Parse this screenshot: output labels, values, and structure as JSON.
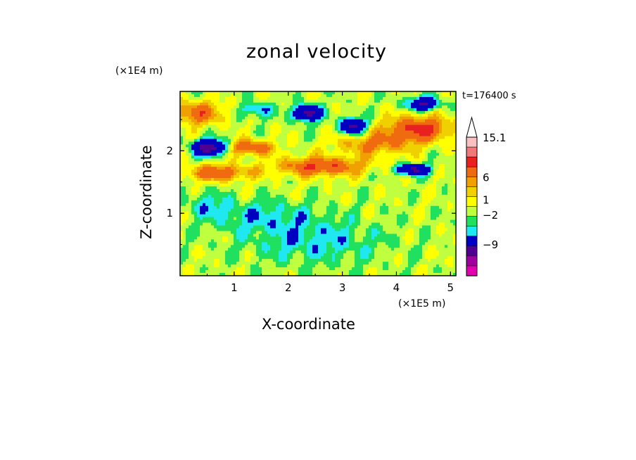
{
  "chart_data": {
    "type": "heatmap",
    "title": "zonal velocity",
    "xlabel": "X-coordinate",
    "ylabel": "Z-coordinate",
    "x_unit": "(×1E5 m)",
    "y_unit": "(×1E4 m)",
    "time_label": "t=176400 s",
    "xlim": [
      0,
      5.1
    ],
    "ylim": [
      0,
      2.95
    ],
    "x_ticks": [
      1,
      2,
      3,
      4,
      5
    ],
    "y_ticks": [
      1,
      2
    ],
    "colorbar": {
      "labels": [
        "15.1",
        "6",
        "1",
        "−2",
        "−9"
      ],
      "label_values": [
        15.1,
        6,
        1,
        -2,
        -9
      ],
      "colors_top_to_bottom": [
        "#f8c0c0",
        "#f07878",
        "#e82020",
        "#f06a10",
        "#f0a000",
        "#f0d000",
        "#ffff00",
        "#c0ff40",
        "#20e060",
        "#20e8f0",
        "#0000c0",
        "#500090",
        "#a000a0",
        "#e000b0"
      ]
    },
    "bands": [
      {
        "z": 0.0,
        "desc": "yellow near surface",
        "value": 0.5
      },
      {
        "z": 0.6,
        "desc": "green/yellow mix",
        "value": -0.5
      },
      {
        "z": 1.2,
        "desc": "yellow with green patches",
        "value": 0.5
      },
      {
        "z": 1.6,
        "desc": "orange band",
        "value": 5
      },
      {
        "z": 2.0,
        "desc": "blue core near x=0.5",
        "value": -6
      },
      {
        "z": 2.4,
        "desc": "orange/red near x=4.5",
        "value": 7
      },
      {
        "z": 2.7,
        "desc": "blue cores near x=2.3 and x=4.4",
        "value": -7
      }
    ]
  }
}
